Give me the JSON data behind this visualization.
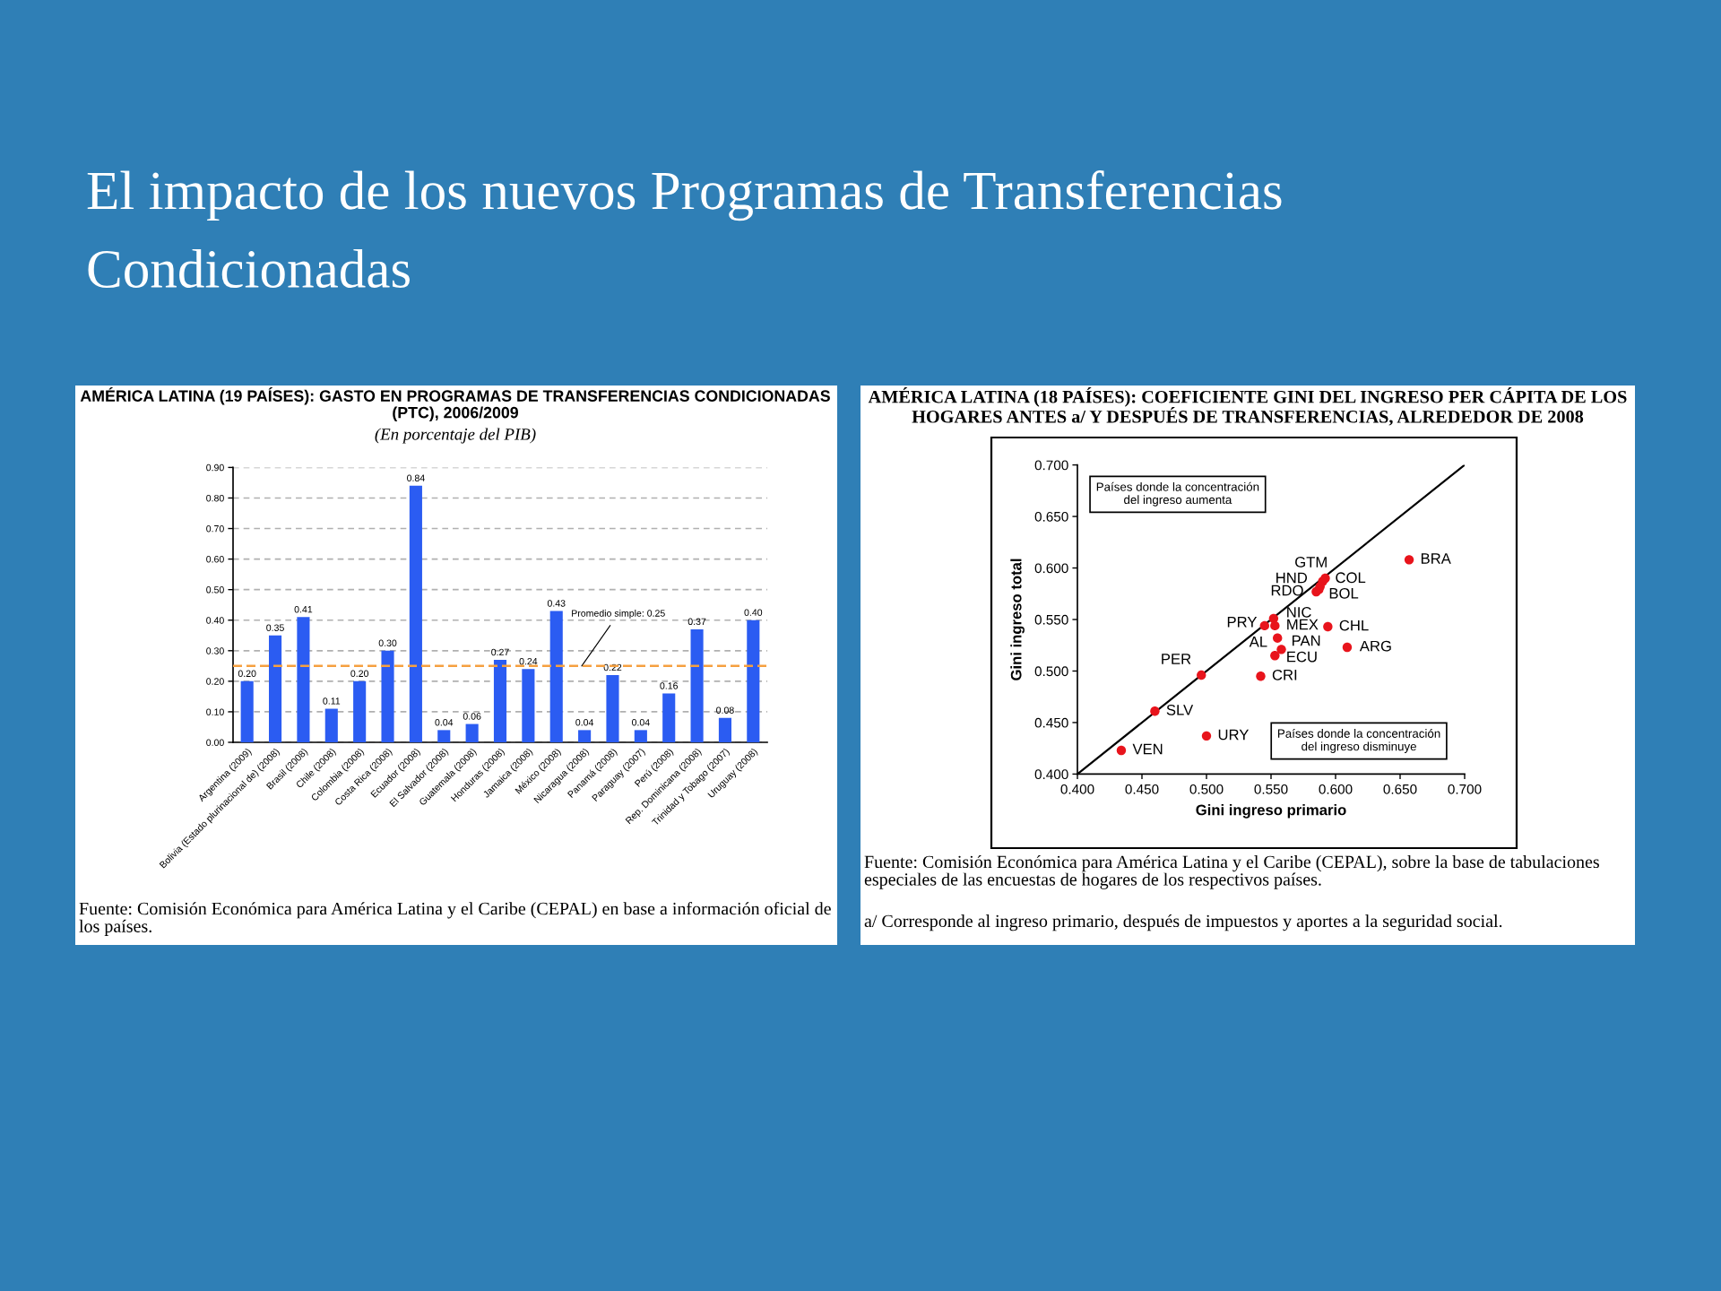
{
  "chart_data": [
    {
      "type": "bar",
      "title": "AMÉRICA LATINA (19 PAÍSES): GASTO EN PROGRAMAS DE TRANSFERENCIAS CONDICIONADAS (PTC), 2006/2009",
      "subtitle": "(En porcentaje del PIB)",
      "categories": [
        "Argentina (2009)",
        "Bolivia (Estado plurinacional de) (2008)",
        "Brasil (2008)",
        "Chile (2008)",
        "Colombia (2008)",
        "Costa Rica (2008)",
        "Ecuador (2008)",
        "El Salvador (2008)",
        "Guatemala (2008)",
        "Honduras (2008)",
        "Jamaica (2008)",
        "México (2008)",
        "Nicaragua (2008)",
        "Panamá (2008)",
        "Paraguay (2007)",
        "Perú (2008)",
        "Rep. Dominicana (2008)",
        "Trinidad y Tobago (2007)",
        "Uruguay (2008)"
      ],
      "values": [
        0.2,
        0.35,
        0.41,
        0.11,
        0.2,
        0.3,
        0.84,
        0.04,
        0.06,
        0.27,
        0.24,
        0.43,
        0.04,
        0.22,
        0.04,
        0.16,
        0.37,
        0.08,
        0.4
      ],
      "value_labels": [
        "0.20",
        "0.35",
        "0.41",
        "0.11",
        "0.20",
        "0.30",
        "0.84",
        "0.04",
        "0.06",
        "0.27",
        "0.24",
        "0.43",
        "0.04",
        "0.22",
        "0.04",
        "0.16",
        "0.37",
        "0.08",
        "0.40"
      ],
      "color": "#2b5cf2",
      "ylim": [
        0,
        0.9
      ],
      "yticks": [
        {
          "value": 0,
          "label": "0.00"
        },
        {
          "value": 0.1,
          "label": "0.10"
        },
        {
          "value": 0.2,
          "label": "0.20"
        },
        {
          "value": 0.3,
          "label": "0.30"
        },
        {
          "value": 0.4,
          "label": "0.40"
        },
        {
          "value": 0.5,
          "label": "0.50"
        },
        {
          "value": 0.6,
          "label": "0.60"
        },
        {
          "value": 0.7,
          "label": "0.70"
        },
        {
          "value": 0.8,
          "label": "0.80"
        },
        {
          "value": 0.9,
          "label": "0.90"
        }
      ],
      "grid": "y",
      "ref_lines": [
        {
          "axis": "y",
          "value": 0.25,
          "label": "Promedio simple: 0.25",
          "color": "#f5a040",
          "line_style": "dashed"
        }
      ],
      "annotations": [
        "El impacto de los nuevos Programas de Transferencias Condicionadas",
        "Fuente: Comisión Económica para América Latina y el Caribe (CEPAL) en base a información oficial de los países."
      ]
    },
    {
      "type": "scatter",
      "title": "AMÉRICA LATINA (18 PAÍSES): COEFICIENTE GINI DEL INGRESO PER CÁPITA DE LOS HOGARES ANTES a/ Y DESPUÉS DE TRANSFERENCIAS, ALREDEDOR DE 2008",
      "xlabel": "Gini ingreso primario",
      "ylabel": "Gini ingreso total",
      "xlim": [
        0.4,
        0.7
      ],
      "ylim": [
        0.4,
        0.7
      ],
      "xticks": [
        {
          "value": 0.4,
          "label": "0.400"
        },
        {
          "value": 0.45,
          "label": "0.450"
        },
        {
          "value": 0.5,
          "label": "0.500"
        },
        {
          "value": 0.55,
          "label": "0.550"
        },
        {
          "value": 0.6,
          "label": "0.600"
        },
        {
          "value": 0.65,
          "label": "0.650"
        },
        {
          "value": 0.7,
          "label": "0.700"
        }
      ],
      "yticks": [
        {
          "value": 0.4,
          "label": "0.400"
        },
        {
          "value": 0.45,
          "label": "0.450"
        },
        {
          "value": 0.5,
          "label": "0.500"
        },
        {
          "value": 0.55,
          "label": "0.550"
        },
        {
          "value": 0.6,
          "label": "0.600"
        },
        {
          "value": 0.65,
          "label": "0.650"
        },
        {
          "value": 0.7,
          "label": "0.700"
        }
      ],
      "series": [
        {
          "type": "scatter",
          "color": "#e8141c",
          "marker": "circle",
          "x": [
            0.657,
            0.592,
            0.59,
            0.588,
            0.587,
            0.585,
            0.552,
            0.545,
            0.553,
            0.594,
            0.555,
            0.558,
            0.609,
            0.496,
            0.553,
            0.542,
            0.46,
            0.5,
            0.434
          ],
          "values": [
            0.608,
            0.59,
            0.587,
            0.582,
            0.579,
            0.577,
            0.551,
            0.544,
            0.544,
            0.543,
            0.532,
            0.521,
            0.523,
            0.496,
            0.515,
            0.495,
            0.461,
            0.437,
            0.423
          ]
        },
        {
          "type": "line",
          "color": "#000000",
          "marker": "none",
          "x": [
            0.4,
            0.7
          ],
          "values": [
            0.4,
            0.7
          ]
        }
      ],
      "annotations": [
        {
          "text": "BRA",
          "x": 0.657,
          "y": 0.608
        },
        {
          "text": "GTM",
          "x": 0.592,
          "y": 0.59
        },
        {
          "text": "COL",
          "x": 0.59,
          "y": 0.587
        },
        {
          "text": "HND",
          "x": 0.588,
          "y": 0.582
        },
        {
          "text": "BOL",
          "x": 0.587,
          "y": 0.579
        },
        {
          "text": "RDO",
          "x": 0.585,
          "y": 0.577
        },
        {
          "text": "NIC",
          "x": 0.552,
          "y": 0.551
        },
        {
          "text": "PRY",
          "x": 0.545,
          "y": 0.544
        },
        {
          "text": "MEX",
          "x": 0.553,
          "y": 0.544
        },
        {
          "text": "CHL",
          "x": 0.594,
          "y": 0.543
        },
        {
          "text": "AL",
          "x": 0.555,
          "y": 0.532
        },
        {
          "text": "PAN",
          "x": 0.558,
          "y": 0.521
        },
        {
          "text": "ARG",
          "x": 0.609,
          "y": 0.523
        },
        {
          "text": "PER",
          "x": 0.496,
          "y": 0.496
        },
        {
          "text": "ECU",
          "x": 0.553,
          "y": 0.515
        },
        {
          "text": "CRI",
          "x": 0.542,
          "y": 0.495
        },
        {
          "text": "SLV",
          "x": 0.46,
          "y": 0.461
        },
        {
          "text": "URY",
          "x": 0.5,
          "y": 0.437
        },
        {
          "text": "VEN",
          "x": 0.434,
          "y": 0.423
        },
        "Países donde la concentración del ingreso aumenta",
        "Países donde la concentración del ingreso disminuye",
        "Fuente: Comisión Económica para América Latina y el Caribe (CEPAL), sobre la base de tabulaciones especiales de las encuestas de hogares de los respectivos países.",
        "a/ Corresponde al ingreso primario, después de impuestos y aportes a la seguridad social."
      ]
    }
  ]
}
